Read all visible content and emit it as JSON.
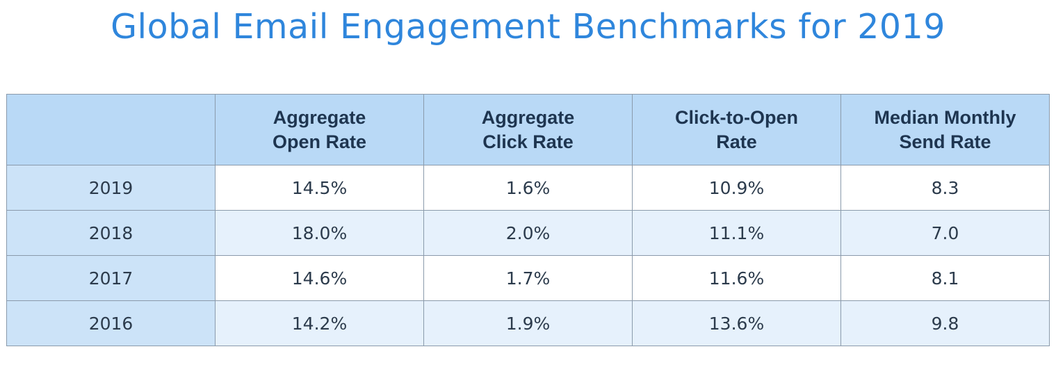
{
  "chart_data": {
    "type": "table",
    "title": "Global Email Engagement Benchmarks for 2019",
    "columns": [
      {
        "line1": "",
        "line2": ""
      },
      {
        "line1": "Aggregate",
        "line2": "Open Rate"
      },
      {
        "line1": "Aggregate",
        "line2": "Click Rate"
      },
      {
        "line1": "Click-to-Open",
        "line2": "Rate"
      },
      {
        "line1": "Median Monthly",
        "line2": "Send Rate"
      }
    ],
    "rows": [
      {
        "year": "2019",
        "cells": [
          "14.5%",
          "1.6%",
          "10.9%",
          "8.3"
        ]
      },
      {
        "year": "2018",
        "cells": [
          "18.0%",
          "2.0%",
          "11.1%",
          "7.0"
        ]
      },
      {
        "year": "2017",
        "cells": [
          "14.6%",
          "1.7%",
          "11.6%",
          "8.1"
        ]
      },
      {
        "year": "2016",
        "cells": [
          "14.2%",
          "1.9%",
          "13.6%",
          "9.8"
        ]
      }
    ]
  },
  "colors": {
    "title": "#2f86dc",
    "header_bg": "#b9d9f6",
    "year_bg": "#cce3f8",
    "stripe_bg": "#e6f1fc",
    "border": "#8a9aab"
  }
}
